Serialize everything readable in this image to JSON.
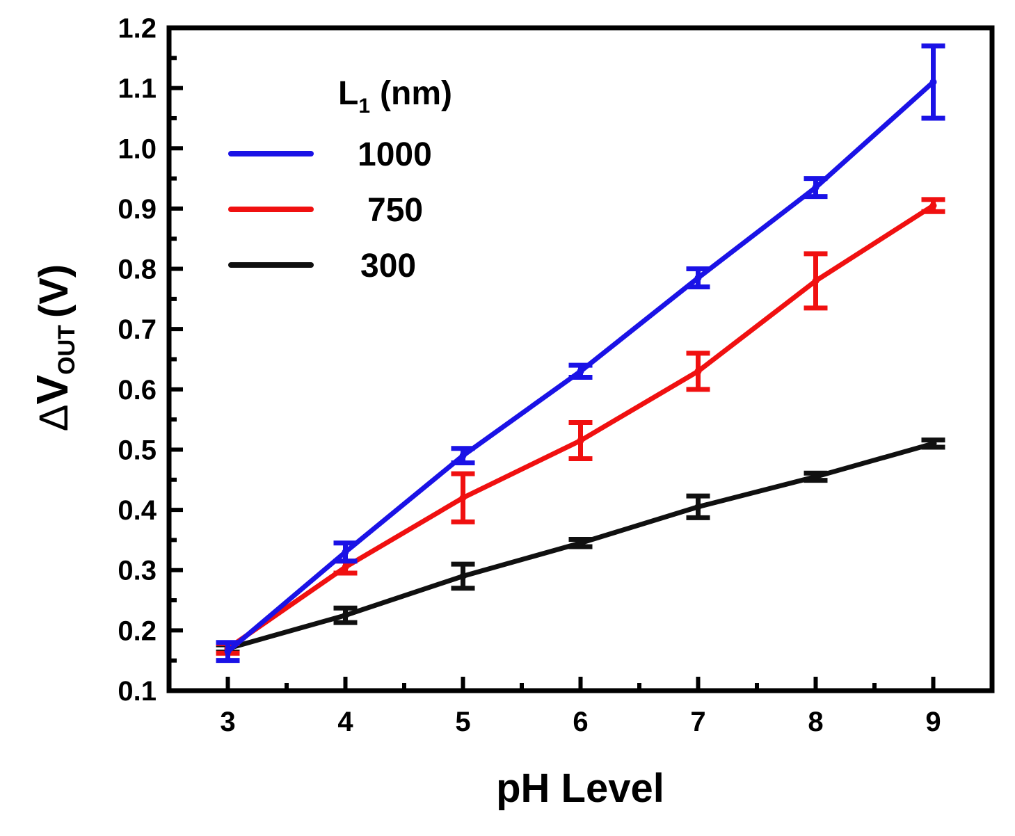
{
  "chart_data": {
    "type": "line",
    "title": "",
    "xlabel": "pH Level",
    "ylabel": {
      "delta": "Δ",
      "main": "V",
      "subscript": "OUT",
      "unit": "(V)"
    },
    "x": [
      3,
      4,
      5,
      6,
      7,
      8,
      9
    ],
    "xlim": [
      2.5,
      9.5
    ],
    "ylim": [
      0.1,
      1.2
    ],
    "x_ticks": [
      "3",
      "4",
      "5",
      "6",
      "7",
      "8",
      "9"
    ],
    "y_ticks": [
      "0.1",
      "0.2",
      "0.3",
      "0.4",
      "0.5",
      "0.6",
      "0.7",
      "0.8",
      "0.9",
      "1.0",
      "1.1",
      "1.2"
    ],
    "legend": {
      "title_main": "L",
      "title_sub": "1",
      "title_unit": "(nm)",
      "placement": "top-left"
    },
    "series": [
      {
        "name": "1000",
        "color": "#1a12e6",
        "values": [
          0.165,
          0.33,
          0.49,
          0.63,
          0.785,
          0.935,
          1.11
        ],
        "errors": [
          0.015,
          0.015,
          0.012,
          0.01,
          0.015,
          0.015,
          0.06
        ]
      },
      {
        "name": "750",
        "color": "#f01010",
        "values": [
          0.17,
          0.305,
          0.42,
          0.515,
          0.63,
          0.78,
          0.905
        ],
        "errors": [
          0.008,
          0.01,
          0.04,
          0.03,
          0.03,
          0.045,
          0.01
        ]
      },
      {
        "name": "300",
        "color": "#101010",
        "values": [
          0.17,
          0.225,
          0.29,
          0.345,
          0.405,
          0.455,
          0.51
        ],
        "errors": [
          0.006,
          0.012,
          0.02,
          0.006,
          0.018,
          0.006,
          0.006
        ]
      }
    ]
  }
}
